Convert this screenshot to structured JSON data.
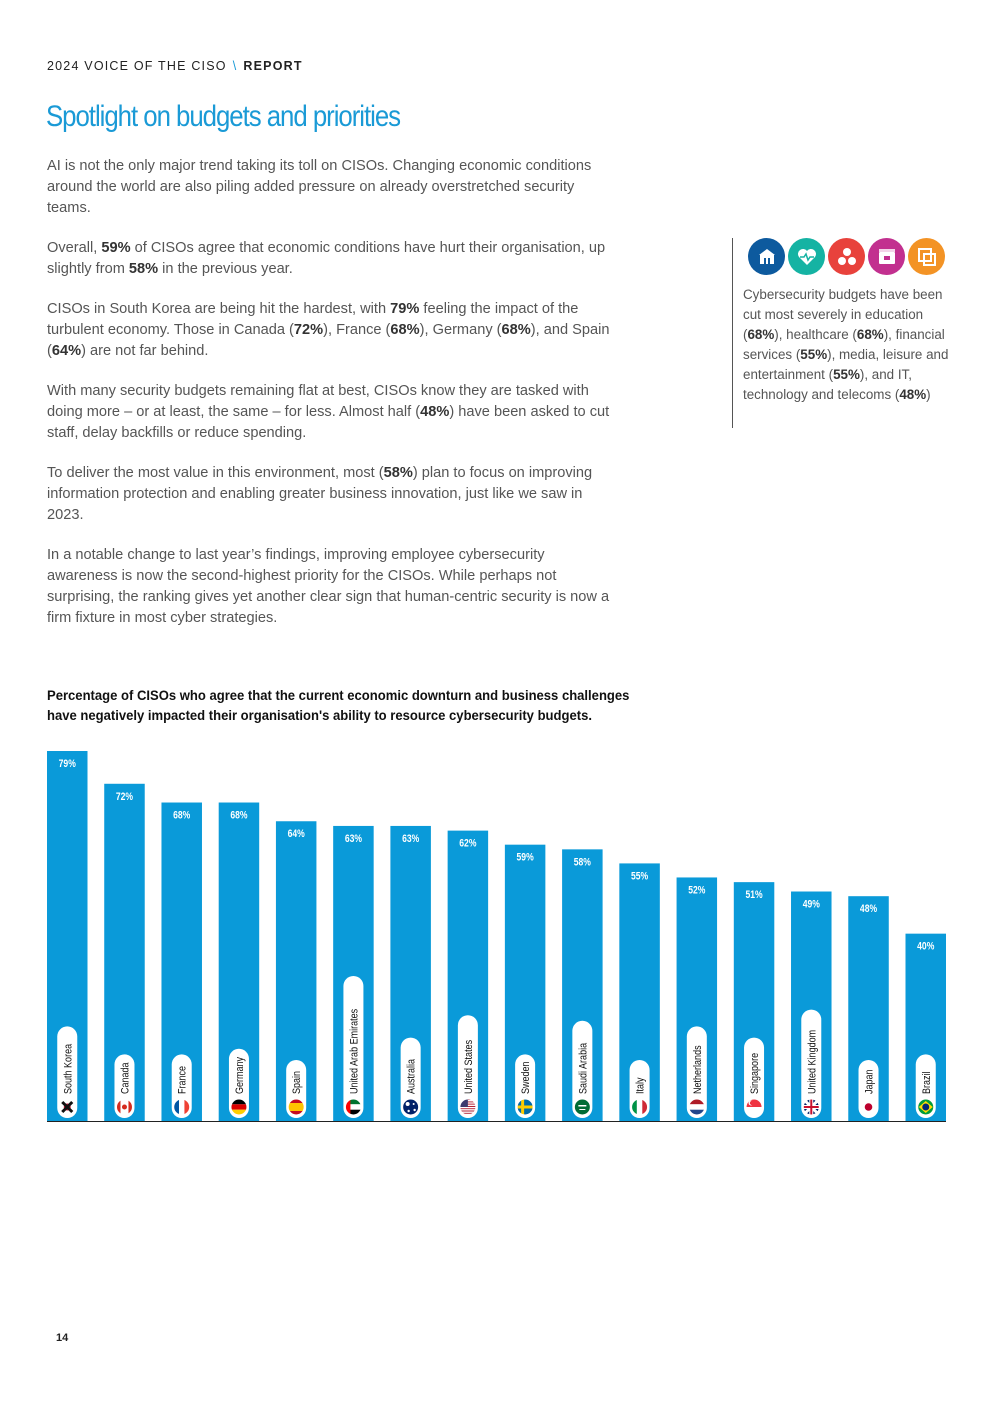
{
  "header": {
    "left": "2024 VOICE OF THE CISO",
    "separator": "\\",
    "right": "REPORT"
  },
  "title": "Spotlight on budgets and priorities",
  "paragraphs": [
    [
      {
        "t": "AI is not the only major trend taking its toll on CISOs. Changing economic conditions around the world are also piling added pressure on already overstretched security teams."
      }
    ],
    [
      {
        "t": "Overall, "
      },
      {
        "b": "59%"
      },
      {
        "t": " of CISOs agree that economic conditions have hurt their organisation, up slightly from "
      },
      {
        "b": "58%"
      },
      {
        "t": " in the previous year."
      }
    ],
    [
      {
        "t": "CISOs in South Korea are being hit the hardest, with "
      },
      {
        "b": "79%"
      },
      {
        "t": " feeling the impact of the turbulent economy. Those in Canada ("
      },
      {
        "b": "72%"
      },
      {
        "t": "), France ("
      },
      {
        "b": "68%"
      },
      {
        "t": "), Germany ("
      },
      {
        "b": "68%"
      },
      {
        "t": "), and Spain ("
      },
      {
        "b": "64%"
      },
      {
        "t": ") are not far behind."
      }
    ],
    [
      {
        "t": "With many security budgets remaining flat at best, CISOs know they are tasked with doing more – or at least, the same – for less. Almost half ("
      },
      {
        "b": "48%"
      },
      {
        "t": ") have been asked to cut staff, delay backfills or reduce spending."
      }
    ],
    [
      {
        "t": "To deliver the most value in this environment, most ("
      },
      {
        "b": "58%"
      },
      {
        "t": ") plan to focus on improving information protection and enabling greater business innovation, just like we saw in 2023."
      }
    ],
    [
      {
        "t": "In a notable change to last year’s findings, improving employee cybersecurity awareness is now the second-highest priority for the CISOs. While perhaps not surprising, the ranking gives yet another clear sign that human-centric security is now a firm fixture in most cyber strategies."
      }
    ]
  ],
  "sidebar": {
    "icons": [
      {
        "name": "education-icon",
        "color": "#0d5a9e"
      },
      {
        "name": "healthcare-icon",
        "color": "#15b3a3"
      },
      {
        "name": "financial-services-icon",
        "color": "#e8423c"
      },
      {
        "name": "media-icon",
        "color": "#c2308f"
      },
      {
        "name": "it-technology-icon",
        "color": "#f39325"
      }
    ],
    "text": [
      {
        "t": "Cybersecurity budgets have been cut most severely in education ("
      },
      {
        "b": "68%"
      },
      {
        "t": "), healthcare ("
      },
      {
        "b": "68%"
      },
      {
        "t": "), financial services ("
      },
      {
        "b": "55%"
      },
      {
        "t": "), media, leisure and entertainment ("
      },
      {
        "b": "55%"
      },
      {
        "t": "), and IT, technology and telecoms ("
      },
      {
        "b": "48%"
      },
      {
        "t": ")"
      }
    ]
  },
  "chart_title": "Percentage of CISOs who agree that the current economic downturn and business challenges have negatively impacted their organisation's ability to resource cybersecurity budgets.",
  "chart_data": {
    "type": "bar",
    "title": "Percentage of CISOs who agree that the current economic downturn and business challenges have negatively impacted their organisation's ability to resource cybersecurity budgets.",
    "xlabel": "",
    "ylabel": "",
    "unit": "%",
    "ylim": [
      0,
      79
    ],
    "bar_color": "#0a9ad9",
    "categories": [
      "South Korea",
      "Canada",
      "France",
      "Germany",
      "Spain",
      "United Arab Emirates",
      "Australia",
      "United States",
      "Sweden",
      "Saudi Arabia",
      "Italy",
      "Netherlands",
      "Singapore",
      "United Kingdom",
      "Japan",
      "Brazil"
    ],
    "values": [
      79,
      72,
      68,
      68,
      64,
      63,
      63,
      62,
      59,
      58,
      55,
      52,
      51,
      49,
      48,
      40
    ],
    "value_labels": [
      "79%",
      "72%",
      "68%",
      "68%",
      "64%",
      "63%",
      "63%",
      "62%",
      "59%",
      "58%",
      "55%",
      "52%",
      "51%",
      "49%",
      "48%",
      "40%"
    ],
    "flags": [
      "south-korea-flag-icon",
      "canada-flag-icon",
      "france-flag-icon",
      "germany-flag-icon",
      "spain-flag-icon",
      "uae-flag-icon",
      "australia-flag-icon",
      "usa-flag-icon",
      "sweden-flag-icon",
      "saudi-arabia-flag-icon",
      "italy-flag-icon",
      "netherlands-flag-icon",
      "singapore-flag-icon",
      "uk-flag-icon",
      "japan-flag-icon",
      "brazil-flag-icon"
    ],
    "grid": false,
    "legend": "none"
  },
  "page_number": "14"
}
